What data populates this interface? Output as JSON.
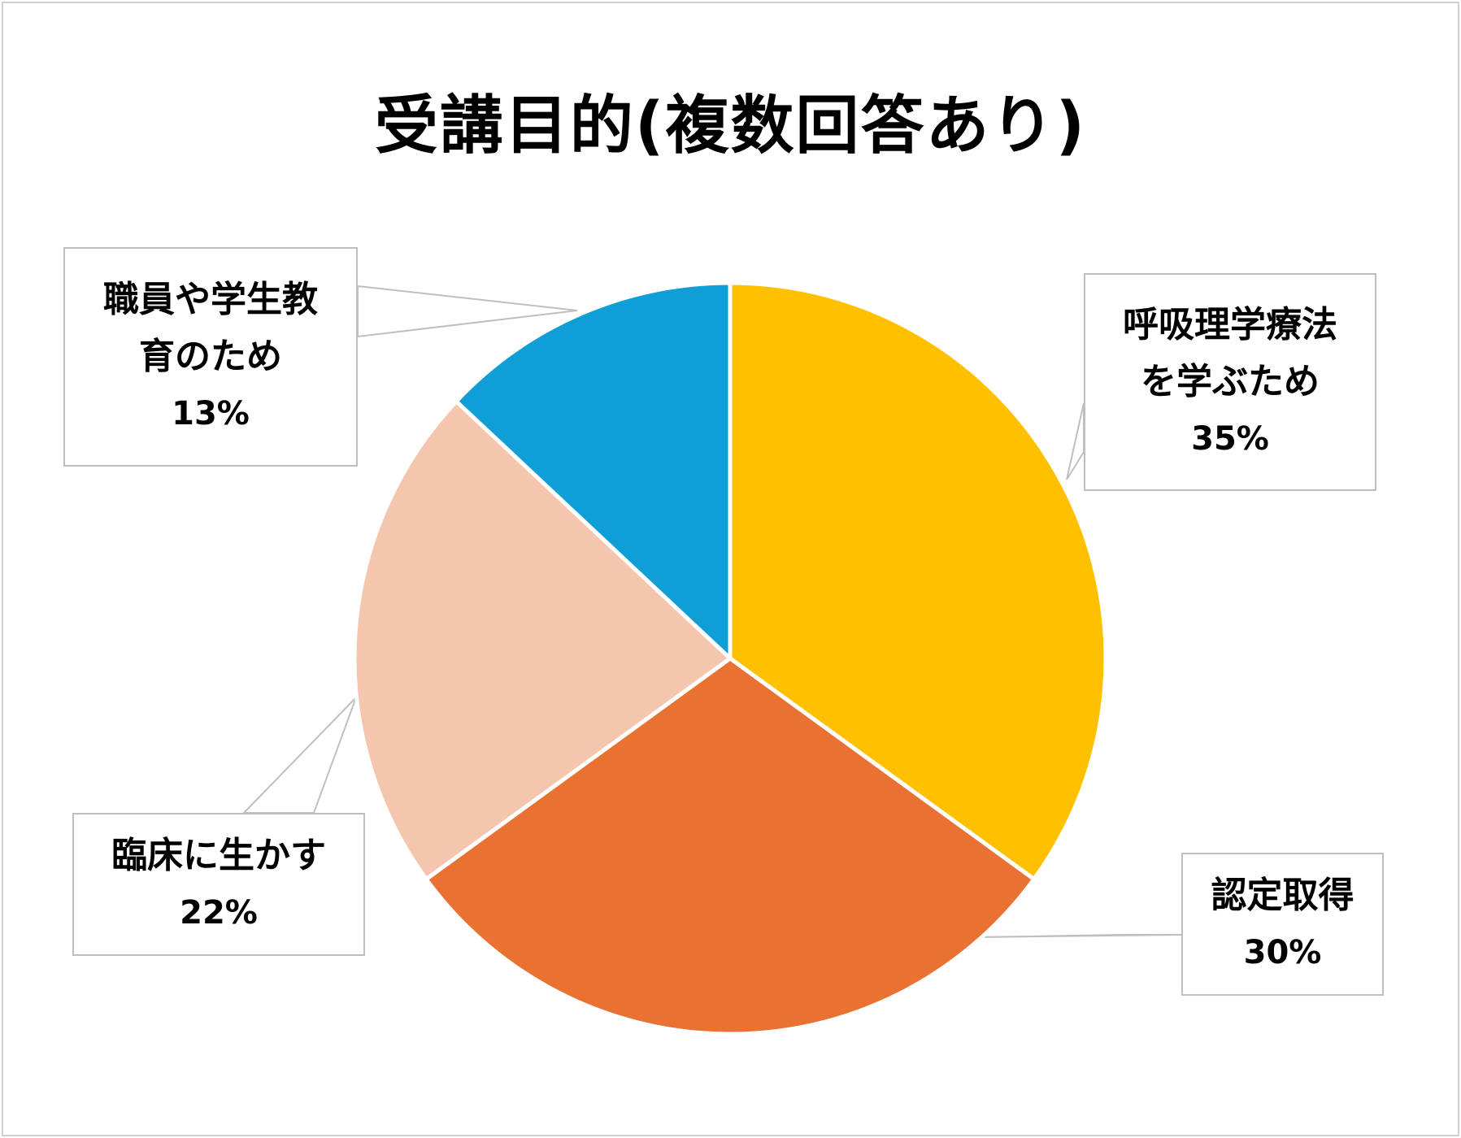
{
  "chart_data": {
    "type": "pie",
    "title": "受講目的(複数回答あり)",
    "slices": [
      {
        "label_lines": [
          "呼吸理学療法",
          "を学ぶため"
        ],
        "value": 35,
        "value_label": "35%",
        "color": "#FFC000"
      },
      {
        "label_lines": [
          "認定取得"
        ],
        "value": 30,
        "value_label": "30%",
        "color": "#E97132"
      },
      {
        "label_lines": [
          "臨床に生かす"
        ],
        "value": 22,
        "value_label": "22%",
        "color": "#F5C6AE"
      },
      {
        "label_lines": [
          "職員や学生教",
          "育のため"
        ],
        "value": 13,
        "value_label": "13%",
        "color": "#109ED6"
      }
    ],
    "start_angle": "12 o'clock",
    "direction": "clockwise",
    "legend": "none",
    "data_labels": "callouts"
  }
}
